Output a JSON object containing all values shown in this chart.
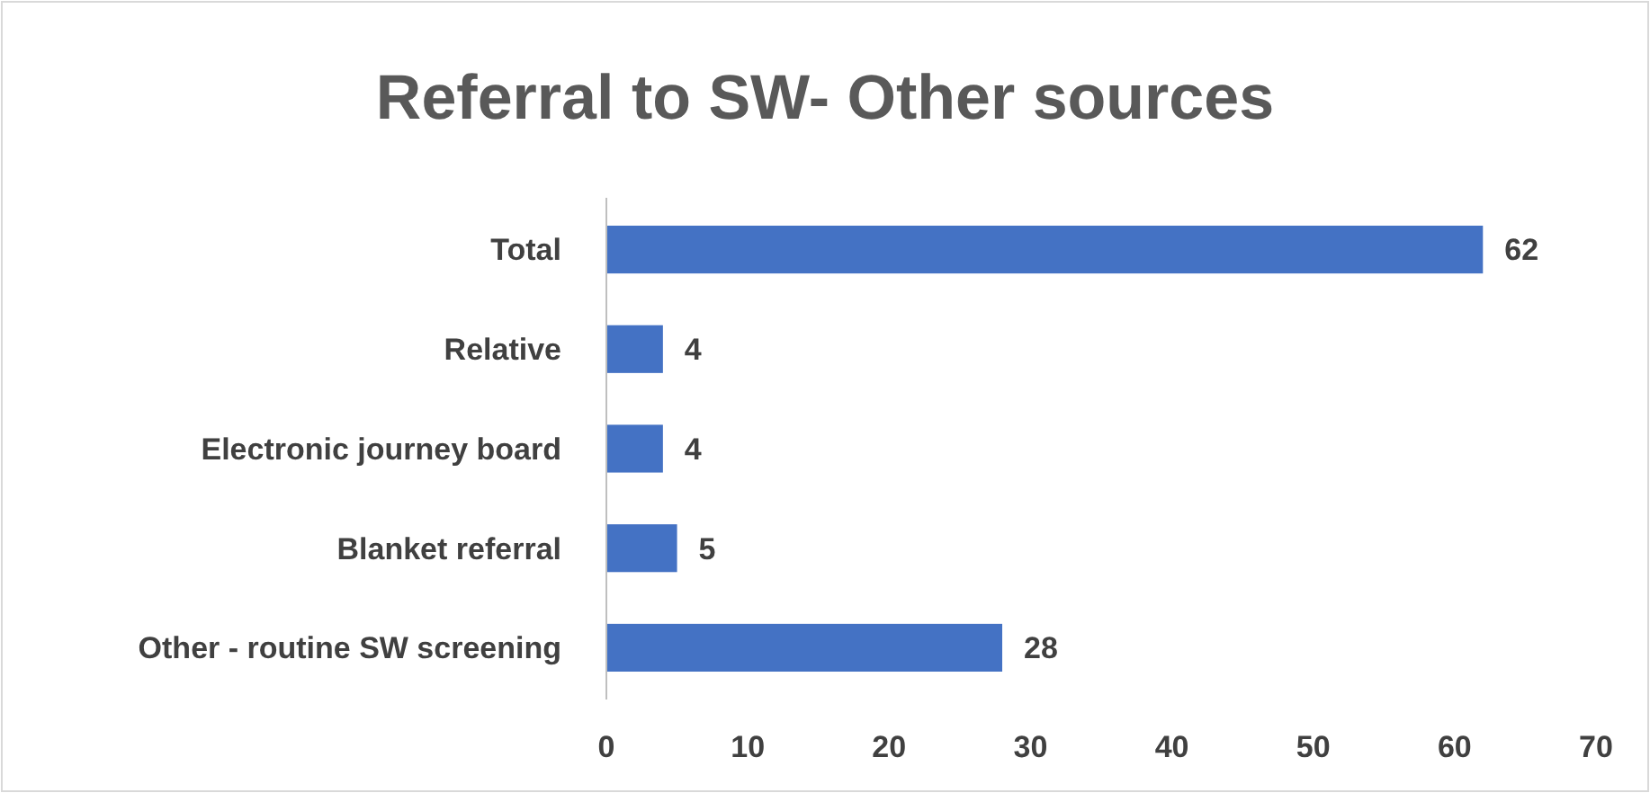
{
  "chart_data": {
    "type": "bar",
    "orientation": "horizontal",
    "title": "Referral to SW- Other sources",
    "categories": [
      "Total",
      "Relative",
      "Electronic journey board",
      "Blanket referral",
      "Other - routine SW screening"
    ],
    "values": [
      62,
      4,
      4,
      5,
      28
    ],
    "color": "#4472c4",
    "xlim": [
      0,
      70
    ],
    "xticks": [
      0,
      10,
      20,
      30,
      40,
      50,
      60,
      70
    ],
    "data_labels": true,
    "grid": false
  }
}
